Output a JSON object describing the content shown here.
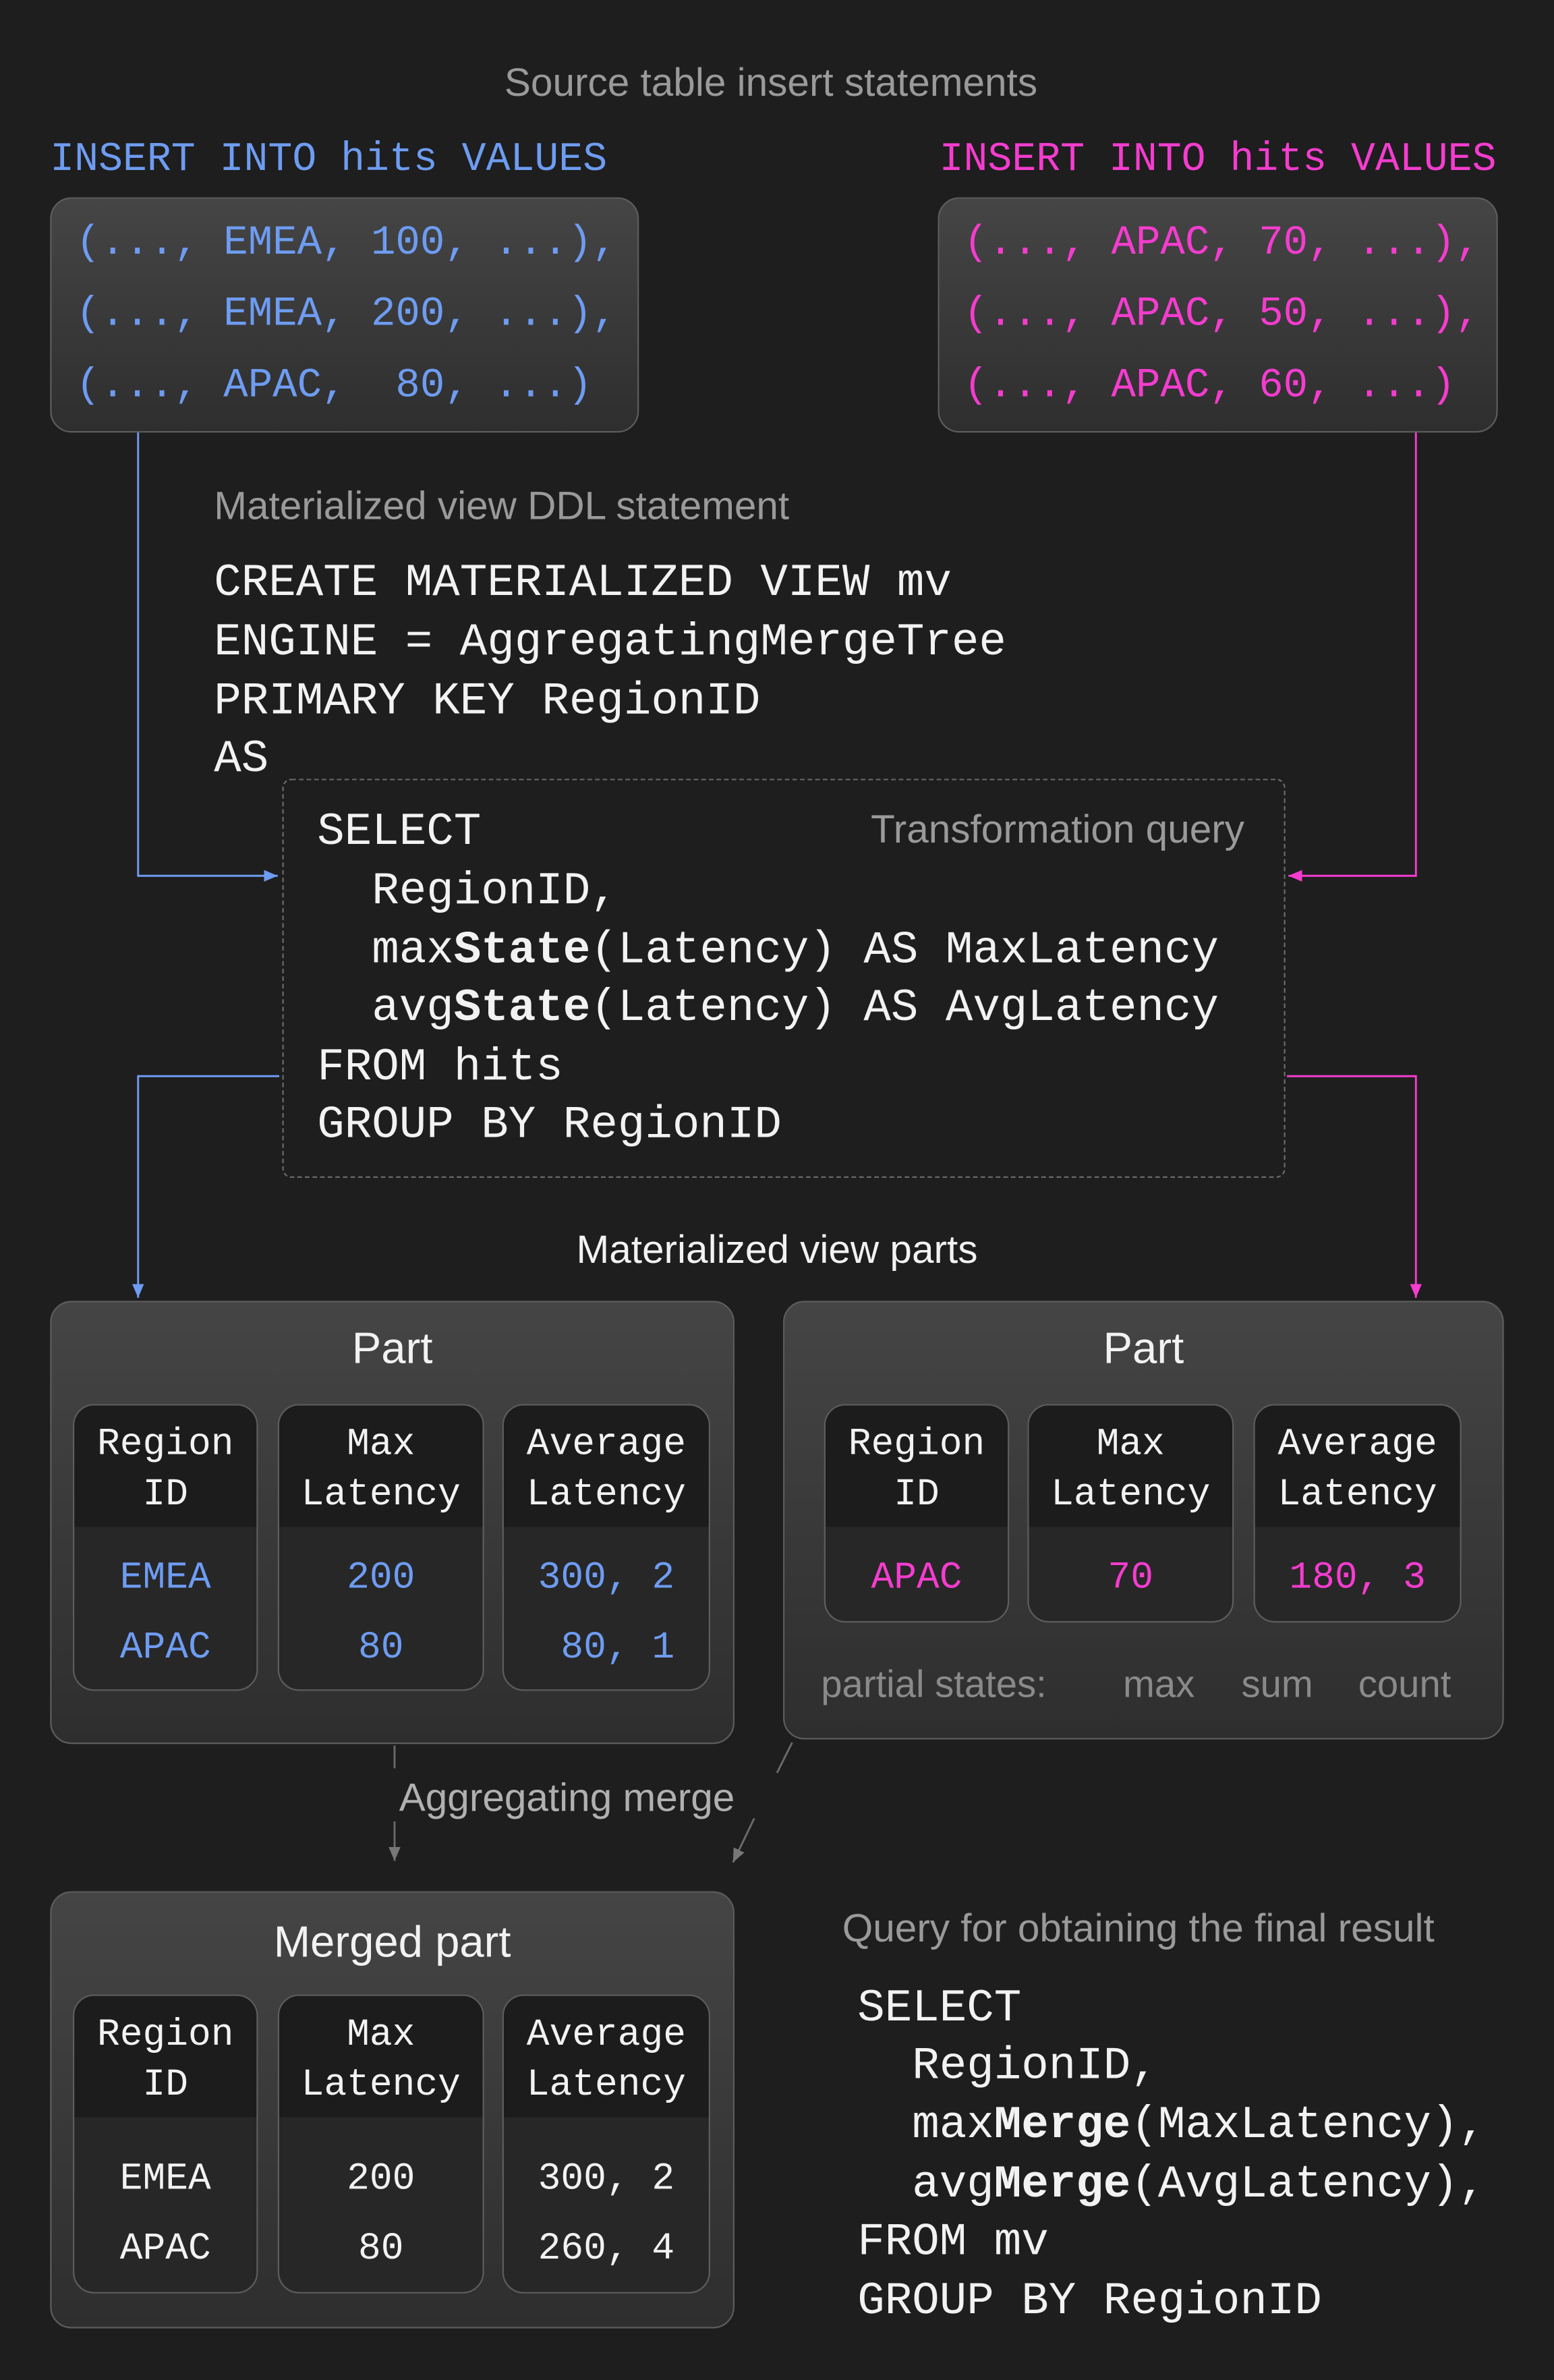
{
  "colors": {
    "background": "#1e1e1e",
    "table_1": "#6e9cf2",
    "table_2": "#f53ccf",
    "muted": "#9a9a9a"
  },
  "source_title": "Source table insert statements",
  "insert_left": {
    "header": "INSERT INTO hits VALUES",
    "rows": [
      "(..., EMEA, 100, ...),",
      "(..., EMEA, 200, ...),",
      "(..., APAC,  80, ...)"
    ]
  },
  "insert_right": {
    "header": "INSERT INTO hits VALUES",
    "rows": [
      "(..., APAC, 70, ...),",
      "(..., APAC, 50, ...),",
      "(..., APAC, 60, ...)"
    ]
  },
  "ddl": {
    "label": "Materialized view DDL statement",
    "lines": [
      "CREATE MATERIALIZED VIEW mv",
      "ENGINE = AggregatingMergeTree",
      "PRIMARY KEY RegionID",
      "AS"
    ]
  },
  "transform": {
    "label": "Transformation query",
    "lines": [
      [
        "SELECT",
        "",
        ""
      ],
      [
        "  RegionID,",
        "",
        ""
      ],
      [
        "  max",
        "State",
        "(Latency) AS MaxLatency"
      ],
      [
        "  avg",
        "State",
        "(Latency) AS AvgLatency"
      ],
      [
        "FROM hits",
        "",
        ""
      ],
      [
        "GROUP BY RegionID",
        "",
        ""
      ]
    ]
  },
  "mv_parts_label": "Materialized view parts",
  "part_left": {
    "title": "Part",
    "headers": [
      [
        "Region",
        "ID"
      ],
      [
        "Max",
        "Latency"
      ],
      [
        "Average",
        "Latency"
      ]
    ],
    "rows": [
      [
        "EMEA",
        "200",
        "300, 2"
      ],
      [
        "APAC",
        "80",
        " 80, 1"
      ]
    ]
  },
  "part_right": {
    "title": "Part",
    "headers": [
      [
        "Region",
        "ID"
      ],
      [
        "Max",
        "Latency"
      ],
      [
        "Average",
        "Latency"
      ]
    ],
    "rows": [
      [
        "APAC",
        "70",
        "180, 3"
      ]
    ],
    "partial_states": {
      "label": "partial states:",
      "max": "max",
      "sum": "sum",
      "count": "count"
    }
  },
  "merge_label": "Aggregating merge",
  "merged_part": {
    "title": "Merged part",
    "headers": [
      [
        "Region",
        "ID"
      ],
      [
        "Max",
        "Latency"
      ],
      [
        "Average",
        "Latency"
      ]
    ],
    "rows": [
      [
        "EMEA",
        "200",
        "300, 2"
      ],
      [
        "APAC",
        "80",
        "260, 4"
      ]
    ]
  },
  "final_query": {
    "label": "Query for obtaining the final result",
    "lines": [
      [
        "SELECT",
        "",
        ""
      ],
      [
        "  RegionID,",
        "",
        ""
      ],
      [
        "  max",
        "Merge",
        "(MaxLatency),"
      ],
      [
        "  avg",
        "Merge",
        "(AvgLatency),"
      ],
      [
        "FROM mv",
        "",
        ""
      ],
      [
        "GROUP BY RegionID",
        "",
        ""
      ]
    ]
  }
}
